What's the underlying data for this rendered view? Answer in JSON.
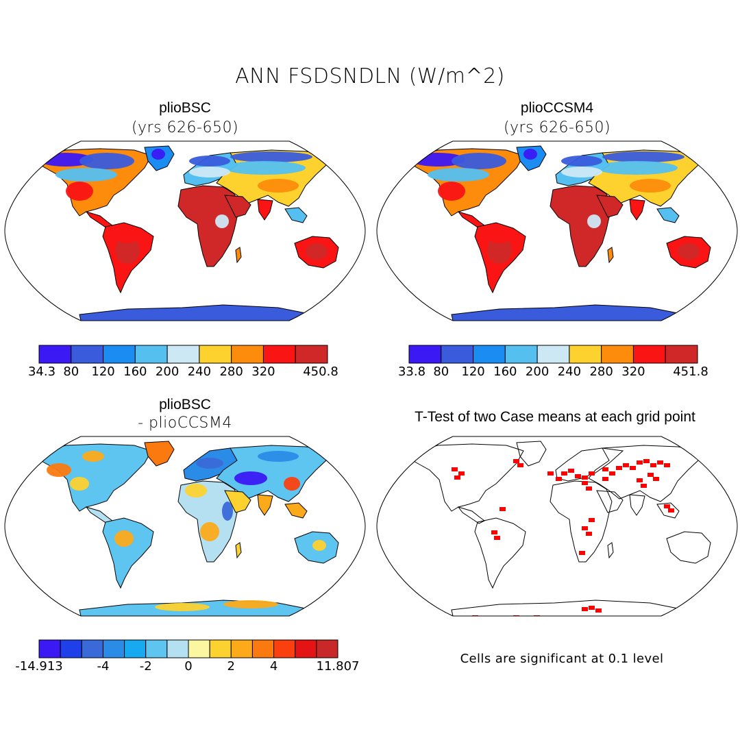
{
  "main_title": "ANN FSDSNDLN (W/m^2)",
  "panels": [
    {
      "title": "plioBSC",
      "subtitle": "(yrs 626-650)",
      "type": "field",
      "colorbar": {
        "colors": [
          "#3b19f5",
          "#3a5cdc",
          "#1a8cf2",
          "#55c0f0",
          "#cde8f5",
          "#fdd22e",
          "#fd8c0c",
          "#fa1414",
          "#d02828"
        ],
        "labels": [
          "34.3",
          "80",
          "120",
          "160",
          "200",
          "240",
          "280",
          "320",
          "450.8"
        ]
      }
    },
    {
      "title": "plioCCSM4",
      "subtitle": "(yrs 626-650)",
      "type": "field",
      "colorbar": {
        "colors": [
          "#3b19f5",
          "#3a5cdc",
          "#1a8cf2",
          "#55c0f0",
          "#cde8f5",
          "#fdd22e",
          "#fd8c0c",
          "#fa1414",
          "#d02828"
        ],
        "labels": [
          "33.8",
          "80",
          "120",
          "160",
          "200",
          "240",
          "280",
          "320",
          "451.8"
        ]
      }
    },
    {
      "title": "plioBSC",
      "subtitle": "- plioCCSM4",
      "type": "difference",
      "colorbar": {
        "colors": [
          "#3b19f5",
          "#1f3fea",
          "#3a6ad8",
          "#2b8ce8",
          "#18aaf0",
          "#5ec4f0",
          "#b4e0f2",
          "#fbf7a0",
          "#fcd230",
          "#fcaa1a",
          "#fb7a10",
          "#fb4010",
          "#e41414",
          "#c82828"
        ],
        "labels": [
          "-14.913",
          "-4",
          "-2",
          "0",
          "2",
          "4",
          "11.807"
        ]
      }
    },
    {
      "title": "T-Test of two Case means at each grid point",
      "subtitle": "",
      "type": "ttest",
      "note": "Cells are significant at 0.1 level",
      "significant_color": "#ff0000"
    }
  ]
}
